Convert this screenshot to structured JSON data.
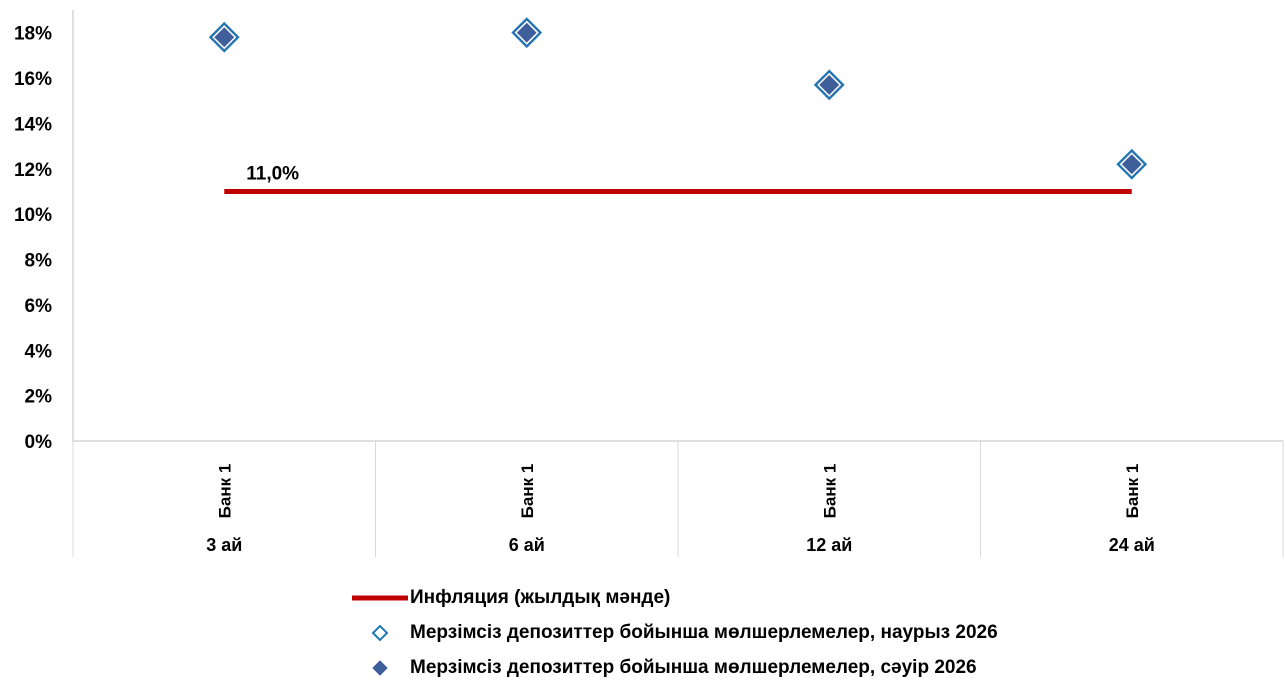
{
  "chart_data": {
    "type": "scatter",
    "categories": [
      {
        "group": "Банк 1",
        "term": "3 ай"
      },
      {
        "group": "Банк 1",
        "term": "6 ай"
      },
      {
        "group": "Банк 1",
        "term": "12 ай"
      },
      {
        "group": "Банк 1",
        "term": "24 ай"
      }
    ],
    "series": [
      {
        "name": "Инфляция (жылдық мәнде)",
        "kind": "line",
        "color": "#C00000",
        "values": [
          11.0,
          11.0,
          11.0,
          11.0
        ],
        "label": "11,0%"
      },
      {
        "name": "Мерзімсіз депозиттер бойынша мөлшерлемелер, наурыз 2026",
        "kind": "marker-hollow",
        "color": "#1F77B4",
        "values": [
          17.8,
          18.0,
          15.7,
          12.2
        ]
      },
      {
        "name": "Мерзімсіз депозиттер бойынша мөлшерлемелер, сәуір 2026",
        "kind": "marker-filled",
        "color": "#3F5F9A",
        "values": [
          17.8,
          18.0,
          15.7,
          12.2
        ]
      }
    ],
    "yticks": [
      "0%",
      "2%",
      "4%",
      "6%",
      "8%",
      "10%",
      "12%",
      "14%",
      "16%",
      "18%"
    ],
    "ylim": [
      0,
      19
    ],
    "grid": false,
    "legend_position": "bottom"
  }
}
